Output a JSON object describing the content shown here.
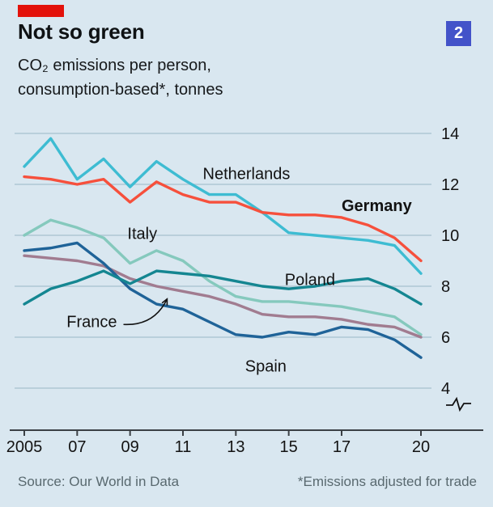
{
  "header": {
    "title": "Not so green",
    "subtitle_line1": "CO₂ emissions per person,",
    "subtitle_line2": "consumption-based*, tonnes",
    "figure_number": "2",
    "tag_color": "#e3120b",
    "badge_color": "#4353c9"
  },
  "footer": {
    "source": "Source: Our World in Data",
    "note": "*Emissions adjusted for trade"
  },
  "chart_data": {
    "type": "line",
    "title": "Not so green",
    "subtitle": "CO₂ emissions per person, consumption-based*, tonnes",
    "x": [
      2005,
      2006,
      2007,
      2008,
      2009,
      2010,
      2011,
      2012,
      2013,
      2014,
      2015,
      2016,
      2017,
      2018,
      2019,
      2020
    ],
    "x_ticks": [
      {
        "x": 2005,
        "label": "2005"
      },
      {
        "x": 2007,
        "label": "07"
      },
      {
        "x": 2009,
        "label": "09"
      },
      {
        "x": 2011,
        "label": "11"
      },
      {
        "x": 2013,
        "label": "13"
      },
      {
        "x": 2015,
        "label": "15"
      },
      {
        "x": 2017,
        "label": "17"
      },
      {
        "x": 2020,
        "label": "20"
      }
    ],
    "yticks": [
      4,
      6,
      8,
      10,
      12,
      14
    ],
    "ylim": [
      4,
      14
    ],
    "axis_break": true,
    "grid": true,
    "legend": "inline-labels",
    "grid_color": "#b9cfdb",
    "axis_color": "#3b4045",
    "label_color": "#121212",
    "series": [
      {
        "name": "Italy",
        "color": "#85c9bd",
        "values": [
          10.0,
          10.6,
          10.3,
          9.9,
          8.9,
          9.4,
          9.0,
          8.2,
          7.6,
          7.4,
          7.4,
          7.3,
          7.2,
          7.0,
          6.8,
          6.1
        ],
        "label": {
          "x": 2008.9,
          "y": 9.85,
          "bold": false
        }
      },
      {
        "name": "France",
        "color": "#a17c90",
        "values": [
          9.2,
          9.1,
          9.0,
          8.8,
          8.3,
          8.0,
          7.8,
          7.6,
          7.3,
          6.9,
          6.8,
          6.8,
          6.7,
          6.5,
          6.4,
          6.0
        ],
        "label": {
          "x": 2006.6,
          "y": 6.4,
          "bold": false
        }
      },
      {
        "name": "Spain",
        "color": "#1f6398",
        "values": [
          9.4,
          9.5,
          9.7,
          8.9,
          7.9,
          7.3,
          7.1,
          6.6,
          6.1,
          6.0,
          6.2,
          6.1,
          6.4,
          6.3,
          5.9,
          5.2
        ],
        "label": {
          "x": 2013.35,
          "y": 4.65,
          "bold": false
        }
      },
      {
        "name": "Poland",
        "color": "#148691",
        "values": [
          7.3,
          7.9,
          8.2,
          8.6,
          8.1,
          8.6,
          8.5,
          8.4,
          8.2,
          8.0,
          7.9,
          8.0,
          8.2,
          8.3,
          7.9,
          7.3
        ],
        "label": {
          "x": 2014.85,
          "y": 8.05,
          "bold": false
        }
      },
      {
        "name": "Netherlands",
        "color": "#3ebcd2",
        "values": [
          12.7,
          13.8,
          12.2,
          13.0,
          11.9,
          12.9,
          12.2,
          11.6,
          11.6,
          10.9,
          10.1,
          10.0,
          9.9,
          9.8,
          9.6,
          8.5
        ],
        "label": {
          "x": 2011.75,
          "y": 12.2,
          "bold": false
        }
      },
      {
        "name": "Germany",
        "color": "#f6503c",
        "values": [
          12.3,
          12.2,
          12.0,
          12.2,
          11.3,
          12.1,
          11.6,
          11.3,
          11.3,
          10.9,
          10.8,
          10.8,
          10.7,
          10.4,
          9.9,
          9.0
        ],
        "label": {
          "x": 2017.0,
          "y": 10.95,
          "bold": true
        }
      }
    ],
    "annotations": [
      {
        "type": "arrow",
        "series": "France",
        "from": {
          "x": 2008.75,
          "y": 6.5
        },
        "to": {
          "x": 2010.4,
          "y": 7.5
        }
      }
    ]
  }
}
